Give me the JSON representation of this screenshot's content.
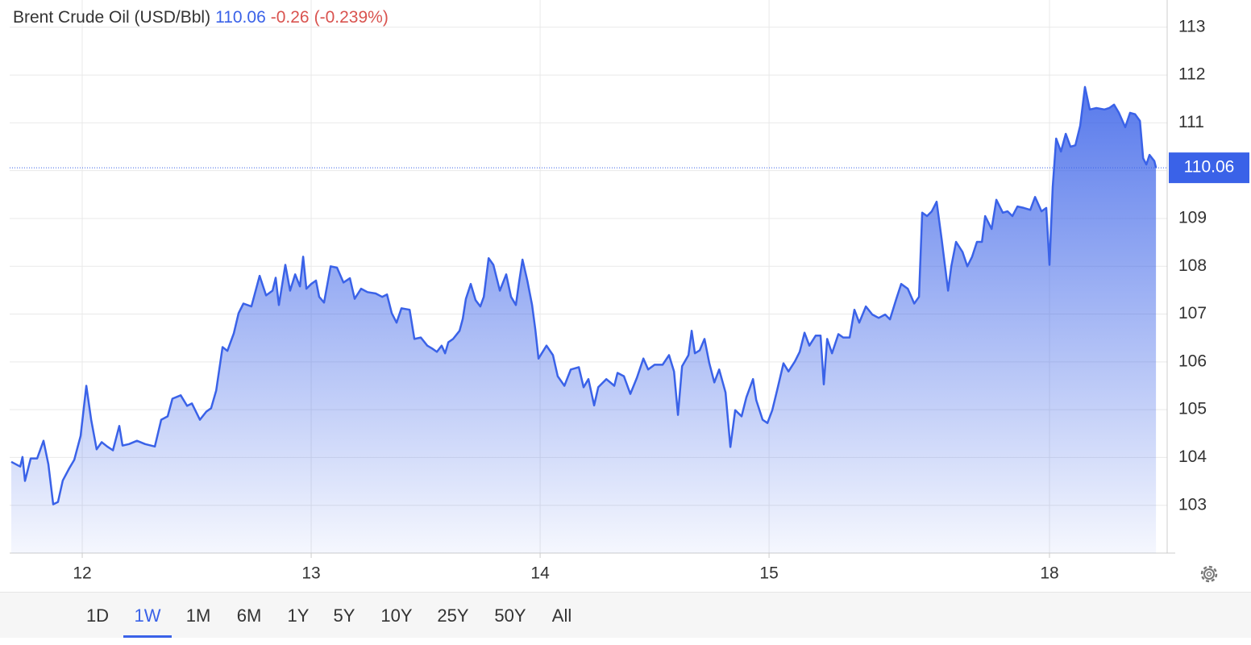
{
  "chart_data": {
    "type": "area",
    "title": "Brent Crude Oil (USD/Bbl)",
    "last_price": 110.06,
    "change": "-0.26",
    "change_percent": "(-0.239%)",
    "color": "#3a62e8",
    "up_color": "#3a62e8",
    "down_color": "#d9534f",
    "grid": true,
    "ranges": [
      "1D",
      "1W",
      "1M",
      "6M",
      "1Y",
      "5Y",
      "10Y",
      "25Y",
      "50Y",
      "All"
    ],
    "active_range": "1W",
    "xlim": [
      -0.317,
      4.739
    ],
    "xticks": [
      {
        "value": 0,
        "label": "12"
      },
      {
        "value": 1,
        "label": "13"
      },
      {
        "value": 2,
        "label": "14"
      },
      {
        "value": 3,
        "label": "15"
      },
      {
        "value": 4.225,
        "label": "18"
      }
    ],
    "ylim": [
      102,
      113.57
    ],
    "yticks": [
      103,
      104,
      105,
      106,
      107,
      108,
      109,
      110,
      111,
      112,
      113
    ],
    "x": [
      -0.31,
      -0.271,
      -0.261,
      -0.25,
      -0.225,
      -0.197,
      -0.169,
      -0.148,
      -0.127,
      -0.106,
      -0.085,
      -0.056,
      -0.035,
      -0.007,
      0.018,
      0.039,
      0.063,
      0.085,
      0.109,
      0.134,
      0.162,
      0.176,
      0.204,
      0.239,
      0.275,
      0.317,
      0.345,
      0.373,
      0.394,
      0.43,
      0.458,
      0.479,
      0.514,
      0.542,
      0.563,
      0.585,
      0.613,
      0.634,
      0.662,
      0.683,
      0.704,
      0.739,
      0.775,
      0.803,
      0.831,
      0.845,
      0.859,
      0.887,
      0.908,
      0.93,
      0.951,
      0.965,
      0.979,
      1.0,
      1.021,
      1.035,
      1.056,
      1.085,
      1.113,
      1.141,
      1.169,
      1.19,
      1.218,
      1.246,
      1.282,
      1.31,
      1.331,
      1.352,
      1.373,
      1.394,
      1.43,
      1.451,
      1.479,
      1.507,
      1.528,
      1.549,
      1.57,
      1.585,
      1.599,
      1.62,
      1.648,
      1.662,
      1.676,
      1.697,
      1.718,
      1.739,
      1.754,
      1.775,
      1.796,
      1.824,
      1.852,
      1.873,
      1.894,
      1.908,
      1.923,
      1.944,
      1.965,
      1.979,
      1.993,
      2.007,
      2.028,
      2.056,
      2.077,
      2.106,
      2.134,
      2.169,
      2.19,
      2.211,
      2.236,
      2.254,
      2.289,
      2.324,
      2.338,
      2.366,
      2.394,
      2.423,
      2.451,
      2.472,
      2.5,
      2.535,
      2.563,
      2.585,
      2.602,
      2.62,
      2.648,
      2.662,
      2.676,
      2.697,
      2.718,
      2.739,
      2.761,
      2.782,
      2.81,
      2.831,
      2.852,
      2.88,
      2.901,
      2.93,
      2.944,
      2.972,
      2.993,
      3.014,
      3.035,
      3.063,
      3.085,
      3.113,
      3.134,
      3.155,
      3.176,
      3.204,
      3.225,
      3.239,
      3.254,
      3.275,
      3.303,
      3.324,
      3.352,
      3.373,
      3.394,
      3.423,
      3.451,
      3.479,
      3.507,
      3.528,
      3.556,
      3.577,
      3.606,
      3.634,
      3.655,
      3.669,
      3.69,
      3.711,
      3.732,
      3.754,
      3.782,
      3.796,
      3.817,
      3.845,
      3.866,
      3.887,
      3.908,
      3.93,
      3.944,
      3.972,
      3.993,
      4.021,
      4.042,
      4.063,
      4.085,
      4.113,
      4.141,
      4.162,
      4.19,
      4.211,
      4.225,
      4.239,
      4.254,
      4.275,
      4.296,
      4.317,
      4.338,
      4.359,
      4.38,
      4.401,
      4.43,
      4.465,
      4.486,
      4.507,
      4.528,
      4.556,
      4.577,
      4.599,
      4.62,
      4.634,
      4.648,
      4.662,
      4.683,
      4.69
    ],
    "values": [
      103.91,
      103.81,
      104.01,
      103.51,
      103.98,
      103.98,
      104.35,
      103.86,
      103.02,
      103.07,
      103.52,
      103.78,
      103.95,
      104.45,
      105.5,
      104.79,
      104.17,
      104.32,
      104.23,
      104.15,
      104.66,
      104.25,
      104.28,
      104.35,
      104.28,
      104.23,
      104.79,
      104.86,
      105.23,
      105.3,
      105.08,
      105.13,
      104.79,
      104.96,
      105.03,
      105.4,
      106.31,
      106.23,
      106.6,
      107.02,
      107.22,
      107.16,
      107.8,
      107.39,
      107.49,
      107.76,
      107.19,
      108.03,
      107.49,
      107.83,
      107.58,
      108.2,
      107.53,
      107.63,
      107.7,
      107.36,
      107.24,
      108.0,
      107.97,
      107.66,
      107.75,
      107.32,
      107.53,
      107.46,
      107.43,
      107.36,
      107.41,
      107.02,
      106.82,
      107.12,
      107.09,
      106.48,
      106.51,
      106.34,
      106.28,
      106.21,
      106.34,
      106.18,
      106.41,
      106.48,
      106.65,
      106.9,
      107.32,
      107.63,
      107.29,
      107.16,
      107.36,
      108.17,
      108.03,
      107.49,
      107.83,
      107.36,
      107.19,
      107.66,
      108.14,
      107.7,
      107.19,
      106.68,
      106.07,
      106.18,
      106.34,
      106.14,
      105.7,
      105.5,
      105.84,
      105.89,
      105.47,
      105.64,
      105.09,
      105.47,
      105.64,
      105.5,
      105.77,
      105.7,
      105.33,
      105.67,
      106.07,
      105.84,
      105.94,
      105.94,
      106.14,
      105.8,
      104.89,
      105.91,
      106.14,
      106.65,
      106.18,
      106.24,
      106.48,
      105.97,
      105.57,
      105.84,
      105.36,
      104.22,
      104.99,
      104.86,
      105.26,
      105.64,
      105.2,
      104.79,
      104.72,
      104.99,
      105.4,
      105.97,
      105.8,
      106.01,
      106.21,
      106.61,
      106.34,
      106.55,
      106.55,
      105.53,
      106.48,
      106.18,
      106.58,
      106.51,
      106.51,
      107.09,
      106.82,
      107.16,
      106.99,
      106.92,
      106.99,
      106.89,
      107.32,
      107.63,
      107.53,
      107.22,
      107.36,
      109.12,
      109.05,
      109.15,
      109.35,
      108.57,
      107.49,
      108.0,
      108.51,
      108.3,
      108.0,
      108.2,
      108.51,
      108.51,
      109.05,
      108.78,
      109.39,
      109.12,
      109.15,
      109.05,
      109.25,
      109.22,
      109.18,
      109.45,
      109.15,
      109.22,
      108.03,
      109.66,
      110.67,
      110.4,
      110.77,
      110.5,
      110.53,
      110.94,
      111.75,
      111.28,
      111.31,
      111.28,
      111.31,
      111.38,
      111.21,
      110.91,
      111.21,
      111.18,
      111.04,
      110.26,
      110.13,
      110.33,
      110.2,
      110.06
    ]
  }
}
